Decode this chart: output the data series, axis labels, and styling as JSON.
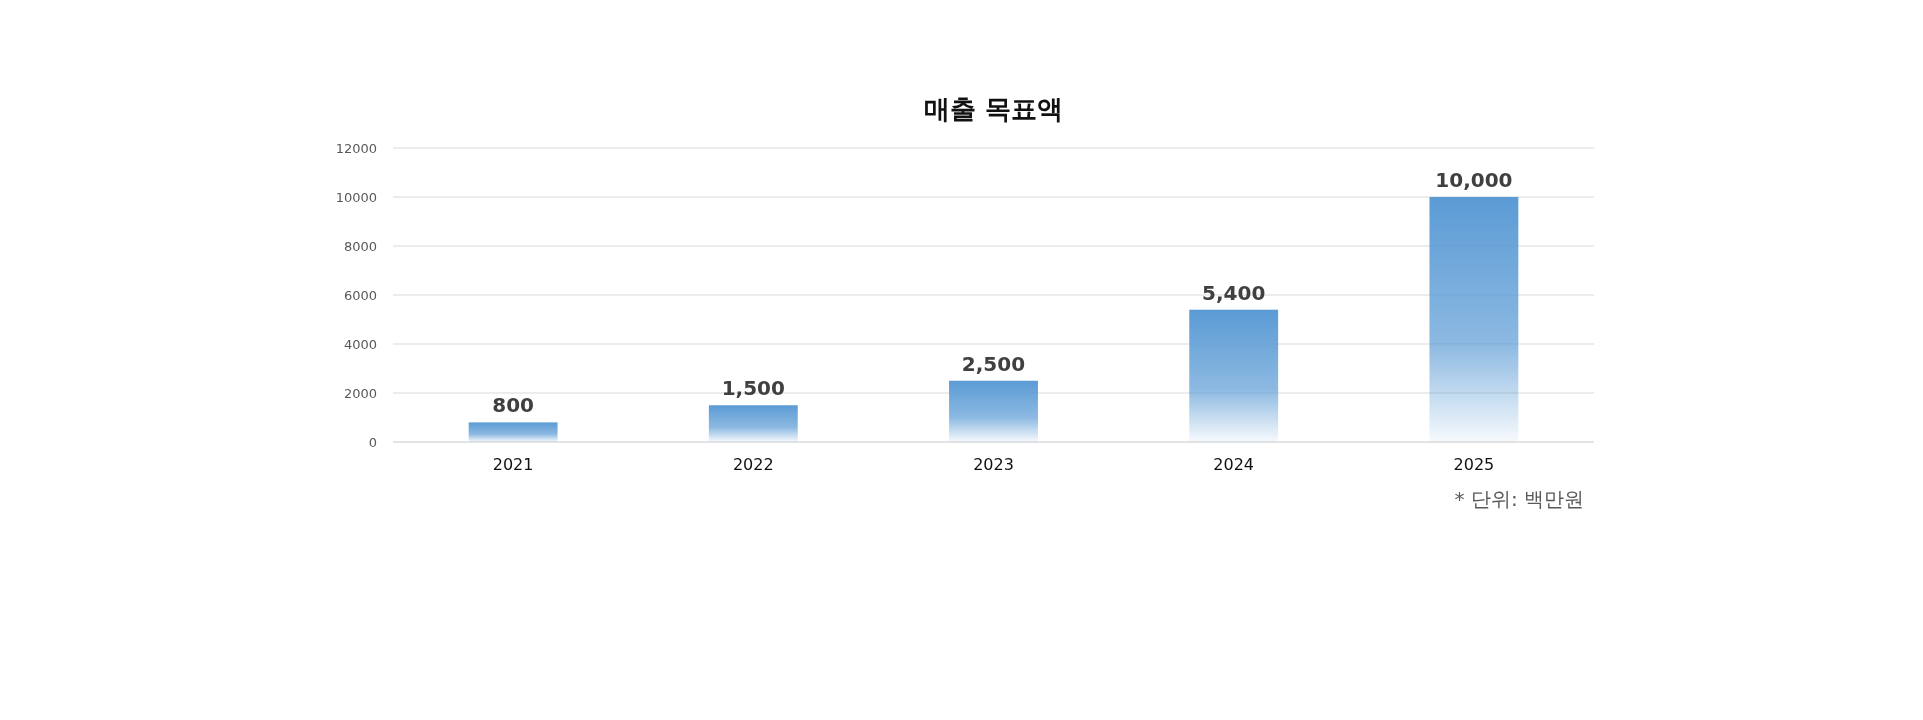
{
  "chart_data": {
    "type": "bar",
    "title": "매출 목표액",
    "categories": [
      "2021",
      "2022",
      "2023",
      "2024",
      "2025"
    ],
    "values": [
      800,
      1500,
      2500,
      5400,
      10000
    ],
    "value_labels": [
      "800",
      "1,500",
      "2,500",
      "5,400",
      "10,000"
    ],
    "color": "#5b9bd5",
    "ylim": [
      0,
      12000
    ],
    "yticks": [
      0,
      2000,
      4000,
      6000,
      8000,
      10000,
      12000
    ],
    "grid": "y",
    "annotations": [
      "* 단위: 백만원"
    ]
  }
}
